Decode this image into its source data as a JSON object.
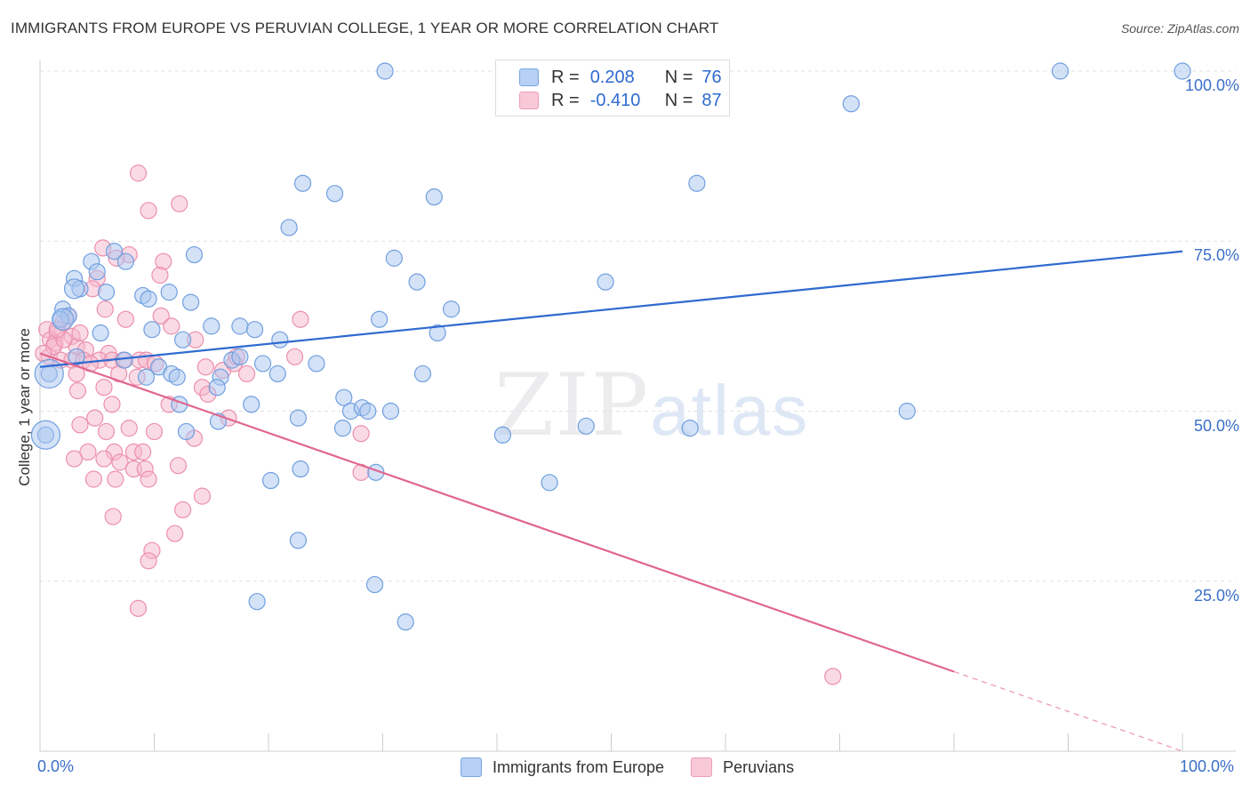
{
  "header": {
    "title": "IMMIGRANTS FROM EUROPE VS PERUVIAN COLLEGE, 1 YEAR OR MORE CORRELATION CHART",
    "source": "Source: ZipAtlas.com"
  },
  "watermark": {
    "zip": "ZIP",
    "atlas": "atlas"
  },
  "legend_top": {
    "rows": [
      {
        "r_label": "R =",
        "r_value": "0.208",
        "n_label": "N =",
        "n_value": "76"
      },
      {
        "r_label": "R =",
        "r_value": "-0.410",
        "n_label": "N =",
        "n_value": "87"
      }
    ]
  },
  "legend_bottom": {
    "items": [
      {
        "label": "Immigrants from Europe"
      },
      {
        "label": "Peruvians"
      }
    ]
  },
  "colors": {
    "blue_fill": "#a9c6ef",
    "blue_stroke": "#6f9fe0",
    "blue_line": "#2f6ad0",
    "pink_fill": "#f6b8cb",
    "pink_stroke": "#ec8fac",
    "pink_line": "#e0668f",
    "grid": "#e2e2e2",
    "tick_label": "#3a6fc9"
  },
  "chart_data": {
    "type": "scatter",
    "title": "IMMIGRANTS FROM EUROPE VS PERUVIAN COLLEGE, 1 YEAR OR MORE CORRELATION CHART",
    "xlabel": "",
    "ylabel": "College, 1 year or more",
    "xlim": [
      0,
      100
    ],
    "ylim": [
      0,
      100
    ],
    "x_tick_labels": [
      "0.0%",
      "100.0%"
    ],
    "y_tick_labels": [
      "100.0%",
      "75.0%",
      "50.0%",
      "25.0%"
    ],
    "y_ticks": [
      100,
      75,
      50,
      25
    ],
    "grid": true,
    "series": [
      {
        "name": "Immigrants from Europe",
        "color": "#6f9fe0",
        "r": 0.208,
        "n": 76,
        "trend": {
          "x": [
            0,
            100
          ],
          "y": [
            56.5,
            73.5
          ]
        },
        "points": [
          [
            30.2,
            100
          ],
          [
            89.3,
            100
          ],
          [
            100,
            100
          ],
          [
            71,
            95.2
          ],
          [
            23,
            83.5
          ],
          [
            25.8,
            82
          ],
          [
            34.5,
            81.5
          ],
          [
            57.5,
            83.5
          ],
          [
            21.8,
            77
          ],
          [
            13.5,
            73
          ],
          [
            6.5,
            73.5
          ],
          [
            4.5,
            72
          ],
          [
            7.5,
            72
          ],
          [
            5,
            70.5
          ],
          [
            3,
            69.5
          ],
          [
            3.5,
            68
          ],
          [
            5.8,
            67.5
          ],
          [
            9,
            67
          ],
          [
            9.5,
            66.5
          ],
          [
            11.3,
            67.5
          ],
          [
            13.2,
            66
          ],
          [
            31,
            72.5
          ],
          [
            33,
            69
          ],
          [
            34.8,
            61.5
          ],
          [
            36,
            65
          ],
          [
            49.5,
            69
          ],
          [
            2,
            65
          ],
          [
            2.5,
            64
          ],
          [
            1.8,
            63.5
          ],
          [
            5.3,
            61.5
          ],
          [
            9.8,
            62
          ],
          [
            12.5,
            60.5
          ],
          [
            15,
            62.5
          ],
          [
            17.5,
            62.5
          ],
          [
            18.8,
            62
          ],
          [
            21,
            60.5
          ],
          [
            29.7,
            63.5
          ],
          [
            16.8,
            57.5
          ],
          [
            19.5,
            57
          ],
          [
            20.8,
            55.5
          ],
          [
            24.2,
            57
          ],
          [
            33.5,
            55.5
          ],
          [
            10.4,
            56.5
          ],
          [
            11.5,
            55.5
          ],
          [
            12,
            55
          ],
          [
            15.8,
            55
          ],
          [
            15.5,
            53.5
          ],
          [
            26.6,
            52
          ],
          [
            12.2,
            51
          ],
          [
            18.5,
            51
          ],
          [
            0.8,
            55.5
          ],
          [
            27.2,
            50
          ],
          [
            28.2,
            50.5
          ],
          [
            28.7,
            50
          ],
          [
            30.7,
            50
          ],
          [
            22.6,
            49
          ],
          [
            15.6,
            48.5
          ],
          [
            26.5,
            47.5
          ],
          [
            12.8,
            47
          ],
          [
            0.5,
            46.5
          ],
          [
            40.5,
            46.5
          ],
          [
            47.8,
            47.8
          ],
          [
            56.9,
            47.5
          ],
          [
            75.9,
            50
          ],
          [
            22.8,
            41.5
          ],
          [
            29.4,
            41
          ],
          [
            20.2,
            39.8
          ],
          [
            44.6,
            39.5
          ],
          [
            22.6,
            31
          ],
          [
            29.3,
            24.5
          ],
          [
            19,
            22
          ],
          [
            32,
            19
          ],
          [
            17.5,
            58
          ],
          [
            9.3,
            55
          ],
          [
            7.4,
            57.5
          ],
          [
            3.2,
            58
          ]
        ]
      },
      {
        "name": "Peruvians",
        "color": "#ec8fac",
        "r": -0.41,
        "n": 87,
        "trend": {
          "x": [
            0,
            100
          ],
          "y": [
            58.5,
            0
          ],
          "solid_until_x": 80
        },
        "points": [
          [
            8.6,
            85
          ],
          [
            12.2,
            80.5
          ],
          [
            9.5,
            79.5
          ],
          [
            5.5,
            74
          ],
          [
            7.8,
            73
          ],
          [
            6.7,
            72.5
          ],
          [
            10.8,
            72
          ],
          [
            10.5,
            70
          ],
          [
            5,
            69.5
          ],
          [
            4.6,
            68
          ],
          [
            5.7,
            65
          ],
          [
            10.6,
            64
          ],
          [
            2.5,
            64
          ],
          [
            7.5,
            63.5
          ],
          [
            11.5,
            62.5
          ],
          [
            22.8,
            63.5
          ],
          [
            0.6,
            62
          ],
          [
            1.5,
            61.5
          ],
          [
            2.8,
            61
          ],
          [
            0.9,
            60.5
          ],
          [
            1.3,
            60
          ],
          [
            13.6,
            60.5
          ],
          [
            3.2,
            59.5
          ],
          [
            4,
            59
          ],
          [
            6,
            58.5
          ],
          [
            0.8,
            58
          ],
          [
            1.8,
            57.5
          ],
          [
            2.8,
            57.5
          ],
          [
            3.8,
            57.5
          ],
          [
            5.2,
            57.5
          ],
          [
            6.3,
            57.5
          ],
          [
            7.3,
            57.5
          ],
          [
            8.7,
            57.5
          ],
          [
            9.3,
            57.5
          ],
          [
            10.1,
            57
          ],
          [
            14.5,
            56.5
          ],
          [
            16,
            56
          ],
          [
            3.2,
            55.5
          ],
          [
            6.9,
            55.5
          ],
          [
            8.5,
            55
          ],
          [
            14.2,
            53.5
          ],
          [
            3.3,
            53
          ],
          [
            5.6,
            53.5
          ],
          [
            14.7,
            52.5
          ],
          [
            11.3,
            51
          ],
          [
            6.3,
            51
          ],
          [
            17,
            57
          ],
          [
            4.8,
            49
          ],
          [
            3.5,
            48
          ],
          [
            16.5,
            49
          ],
          [
            5.8,
            47
          ],
          [
            7.8,
            47.5
          ],
          [
            10,
            47
          ],
          [
            13.5,
            46
          ],
          [
            4.2,
            44
          ],
          [
            6.5,
            44
          ],
          [
            8.2,
            44
          ],
          [
            9,
            44
          ],
          [
            12.1,
            42
          ],
          [
            3,
            43
          ],
          [
            5.6,
            43
          ],
          [
            7,
            42.5
          ],
          [
            8.2,
            41.5
          ],
          [
            9.2,
            41.5
          ],
          [
            4.7,
            40
          ],
          [
            6.6,
            40
          ],
          [
            9.5,
            40
          ],
          [
            28.1,
            41
          ],
          [
            14.2,
            37.5
          ],
          [
            12.5,
            35.5
          ],
          [
            6.4,
            34.5
          ],
          [
            11.8,
            32
          ],
          [
            9.8,
            29.5
          ],
          [
            9.5,
            28
          ],
          [
            8.6,
            21
          ],
          [
            69.4,
            11
          ],
          [
            17.2,
            58
          ],
          [
            18.1,
            55.5
          ],
          [
            22.3,
            58
          ],
          [
            2,
            63
          ],
          [
            1.2,
            59.5
          ],
          [
            4.4,
            57
          ],
          [
            0.3,
            58.5
          ],
          [
            2.1,
            60.5
          ],
          [
            1.5,
            62
          ],
          [
            3.5,
            61.5
          ],
          [
            28.1,
            46.7
          ]
        ]
      }
    ]
  },
  "axes": {
    "y_label": "College, 1 year or more"
  }
}
